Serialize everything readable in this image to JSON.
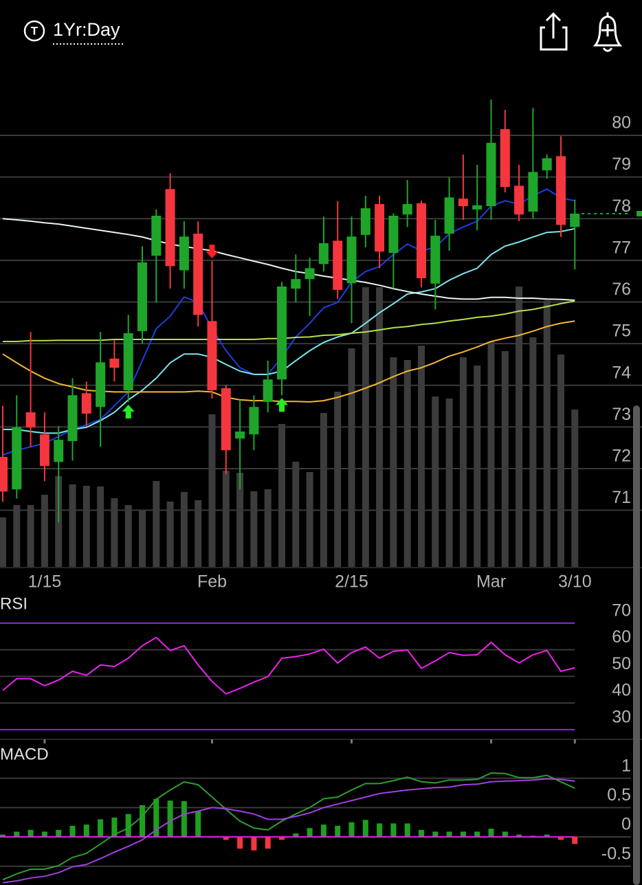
{
  "header": {
    "icon_letter": "T",
    "timeframe": "1Yr:Day"
  },
  "chart_data": [
    {
      "type": "candlestick",
      "categories": [
        null,
        null,
        null,
        "1/15",
        null,
        null,
        null,
        null,
        null,
        null,
        null,
        null,
        null,
        null,
        null,
        "Feb",
        null,
        null,
        null,
        null,
        null,
        null,
        null,
        null,
        null,
        "2/15",
        null,
        null,
        null,
        null,
        null,
        null,
        null,
        null,
        null,
        "Mar",
        null,
        null,
        null,
        null,
        null,
        "3/10"
      ],
      "open": [
        72.28,
        71.5,
        73.35,
        72.82,
        72.16,
        72.66,
        73.81,
        73.48,
        74.64,
        73.88,
        75.3,
        77.11,
        78.71,
        76.76,
        77.64,
        75.54,
        73.93,
        72.72,
        72.82,
        73.6,
        74.14,
        76.32,
        76.55,
        76.91,
        77.47,
        76.45,
        77.61,
        78.35,
        77.18,
        78.1,
        78.37,
        76.44,
        77.64,
        78.48,
        78.22,
        78.3,
        80.15,
        78.79,
        78.17,
        79.16,
        79.5,
        77.8
      ],
      "high": [
        73.51,
        73.76,
        75.28,
        73.35,
        73.02,
        74.17,
        74.09,
        75.28,
        75.08,
        75.69,
        77.34,
        78.22,
        79.09,
        77.94,
        77.94,
        76.98,
        74.01,
        73.65,
        73.76,
        74.59,
        76.48,
        77.14,
        77.06,
        78.05,
        78.42,
        78.05,
        78.55,
        78.55,
        78.13,
        78.93,
        78.43,
        77.97,
        78.99,
        79.54,
        79.29,
        80.86,
        80.61,
        79.29,
        80.66,
        79.54,
        79.98,
        78.46
      ],
      "low": [
        71.2,
        71.28,
        72.52,
        71.7,
        70.71,
        72.19,
        73.02,
        72.52,
        74.09,
        73.6,
        75.0,
        75.99,
        76.32,
        76.32,
        75.41,
        73.68,
        71.86,
        71.5,
        72.44,
        73.35,
        73.76,
        75.99,
        75.66,
        76.73,
        76.07,
        75.49,
        77.31,
        76.81,
        76.32,
        77.8,
        76.35,
        75.82,
        77.23,
        77.97,
        77.72,
        77.97,
        78.63,
        77.94,
        78.0,
        78.96,
        77.56,
        76.78
      ],
      "close": [
        71.45,
        72.99,
        72.99,
        72.06,
        72.69,
        73.76,
        73.32,
        74.55,
        74.42,
        75.25,
        76.95,
        78.07,
        76.86,
        77.57,
        75.69,
        73.88,
        72.44,
        72.89,
        73.48,
        74.14,
        76.37,
        76.55,
        76.81,
        77.41,
        76.29,
        77.57,
        78.25,
        77.21,
        78.07,
        78.35,
        76.57,
        77.59,
        78.51,
        78.3,
        78.32,
        79.82,
        78.76,
        78.1,
        79.12,
        79.45,
        77.85,
        78.12
      ],
      "volume": [
        72,
        90,
        90,
        105,
        132,
        120,
        118,
        117,
        100,
        90,
        83,
        125,
        95,
        109,
        97,
        222,
        140,
        137,
        110,
        113,
        208,
        153,
        138,
        224,
        255,
        318,
        407,
        407,
        305,
        301,
        322,
        248,
        245,
        305,
        293,
        328,
        314,
        408,
        334,
        388,
        309,
        229
      ],
      "up_color": "#1fa52a",
      "down_color": "#f5363f",
      "volume_color": "#3c3c3c",
      "moving_averages": [
        {
          "color": "#1c3fe0",
          "values": [
            72.33,
            72.44,
            72.52,
            72.61,
            72.77,
            72.94,
            73.05,
            73.18,
            73.51,
            73.84,
            74.59,
            75.36,
            75.66,
            76.12,
            75.99,
            75.36,
            74.83,
            74.42,
            74.26,
            74.26,
            74.67,
            75.16,
            75.49,
            75.86,
            75.99,
            76.48,
            76.73,
            76.85,
            77.14,
            77.39,
            77.23,
            77.31,
            77.64,
            77.8,
            77.94,
            78.3,
            78.43,
            78.35,
            78.55,
            78.71,
            78.5,
            78.43
          ]
        },
        {
          "color": "#7fe6ee",
          "values": [
            72.94,
            72.94,
            72.89,
            72.85,
            72.85,
            72.94,
            72.99,
            73.15,
            73.35,
            73.65,
            73.88,
            74.17,
            74.54,
            74.75,
            74.75,
            74.67,
            74.5,
            74.34,
            74.26,
            74.26,
            74.34,
            74.59,
            74.83,
            75.03,
            75.16,
            75.25,
            75.49,
            75.74,
            75.96,
            76.19,
            76.24,
            76.32,
            76.52,
            76.68,
            76.81,
            77.14,
            77.34,
            77.44,
            77.56,
            77.67,
            77.69,
            77.76
          ]
        },
        {
          "color": "#e6f4f4",
          "values": [
            78.0,
            77.97,
            77.94,
            77.9,
            77.87,
            77.82,
            77.77,
            77.72,
            77.67,
            77.62,
            77.56,
            77.47,
            77.39,
            77.33,
            77.28,
            77.23,
            77.14,
            77.06,
            76.98,
            76.9,
            76.81,
            76.73,
            76.68,
            76.62,
            76.57,
            76.52,
            76.47,
            76.4,
            76.32,
            76.25,
            76.19,
            76.14,
            76.09,
            76.07,
            76.07,
            76.11,
            76.11,
            76.09,
            76.09,
            76.07,
            76.06,
            76.04
          ]
        },
        {
          "color": "#b6e04a",
          "values": [
            75.05,
            75.05,
            75.07,
            75.07,
            75.08,
            75.08,
            75.08,
            75.08,
            75.1,
            75.1,
            75.1,
            75.1,
            75.1,
            75.1,
            75.1,
            75.1,
            75.1,
            75.1,
            75.1,
            75.12,
            75.12,
            75.15,
            75.16,
            75.2,
            75.21,
            75.25,
            75.28,
            75.33,
            75.38,
            75.41,
            75.46,
            75.49,
            75.54,
            75.58,
            75.63,
            75.66,
            75.71,
            75.78,
            75.82,
            75.89,
            75.96,
            76.02
          ]
        },
        {
          "color": "#f5b82e",
          "values": [
            74.75,
            74.54,
            74.34,
            74.17,
            74.04,
            73.96,
            73.88,
            73.86,
            73.84,
            73.84,
            73.84,
            73.84,
            73.84,
            73.84,
            73.86,
            73.84,
            73.71,
            73.65,
            73.63,
            73.63,
            73.61,
            73.61,
            73.6,
            73.63,
            73.71,
            73.81,
            73.93,
            74.06,
            74.21,
            74.34,
            74.42,
            74.55,
            74.7,
            74.8,
            74.92,
            75.05,
            75.13,
            75.2,
            75.3,
            75.41,
            75.49,
            75.54
          ]
        }
      ],
      "signals": [
        {
          "index": 9,
          "direction": "up"
        },
        {
          "index": 15,
          "direction": "down"
        },
        {
          "index": 20,
          "direction": "up"
        }
      ],
      "signal_up_color": "#22ee22",
      "signal_down_color": "#ff2020",
      "ylim": [
        69.64,
        80.94
      ],
      "yticks": [
        71,
        72,
        73,
        74,
        75,
        76,
        77,
        78,
        79,
        80
      ],
      "grid": true
    },
    {
      "type": "line",
      "title": "RSI",
      "color": "#ee22ee",
      "levels_color": "#8a2be2",
      "values": [
        44.7,
        49.1,
        49.1,
        46.5,
        48.6,
        51.9,
        50.4,
        54.3,
        53.7,
        56.8,
        61.5,
        64.6,
        59.7,
        61.5,
        54.3,
        48.1,
        43.4,
        45.5,
        47.8,
        49.9,
        56.8,
        57.4,
        58.4,
        60.2,
        55.0,
        58.9,
        61.0,
        56.8,
        59.4,
        59.9,
        53.0,
        55.8,
        58.9,
        57.9,
        58.1,
        62.8,
        58.1,
        55.0,
        58.1,
        59.7,
        51.9,
        53.2
      ],
      "levels": [
        30,
        70
      ],
      "ylim": [
        26.6,
        79.5
      ],
      "yticks": [
        30,
        40,
        50,
        60,
        70
      ],
      "grid": true
    },
    {
      "type": "macd",
      "title": "MACD",
      "series": [
        {
          "color": "#2f9e2f",
          "values": [
            -0.73,
            -0.63,
            -0.55,
            -0.55,
            -0.49,
            -0.35,
            -0.28,
            -0.12,
            0.04,
            0.15,
            0.35,
            0.64,
            0.8,
            0.94,
            0.89,
            0.68,
            0.47,
            0.27,
            0.15,
            0.12,
            0.27,
            0.39,
            0.5,
            0.65,
            0.68,
            0.8,
            0.91,
            0.91,
            0.96,
            1.02,
            0.94,
            0.92,
            0.97,
            0.97,
            0.98,
            1.09,
            1.08,
            1.01,
            1.01,
            1.05,
            0.94,
            0.83
          ]
        },
        {
          "color": "#a040e0",
          "values": [
            -0.78,
            -0.75,
            -0.7,
            -0.67,
            -0.61,
            -0.51,
            -0.47,
            -0.37,
            -0.26,
            -0.16,
            -0.05,
            0.12,
            0.27,
            0.39,
            0.44,
            0.5,
            0.48,
            0.44,
            0.39,
            0.3,
            0.3,
            0.35,
            0.41,
            0.5,
            0.56,
            0.62,
            0.68,
            0.74,
            0.77,
            0.8,
            0.82,
            0.84,
            0.85,
            0.89,
            0.9,
            0.94,
            0.95,
            0.96,
            0.97,
            0.99,
            0.98,
            0.95
          ]
        }
      ],
      "histogram": [
        0.04,
        0.09,
        0.12,
        0.09,
        0.12,
        0.19,
        0.21,
        0.3,
        0.33,
        0.39,
        0.54,
        0.65,
        0.62,
        0.61,
        0.44,
        0.01,
        -0.05,
        -0.2,
        -0.23,
        -0.2,
        -0.05,
        0.06,
        0.15,
        0.21,
        0.19,
        0.25,
        0.29,
        0.23,
        0.23,
        0.23,
        0.12,
        0.09,
        0.09,
        0.09,
        0.09,
        0.14,
        0.09,
        0.04,
        0.02,
        0.04,
        -0.05,
        -0.12
      ],
      "histogram_up_color": "#1ea01e",
      "histogram_down_color": "#f5363f",
      "zero_color": "#e020e0",
      "ylim": [
        -0.82,
        1.5
      ],
      "yticks": [
        -0.5,
        0,
        0.5,
        1
      ],
      "grid": true
    }
  ]
}
